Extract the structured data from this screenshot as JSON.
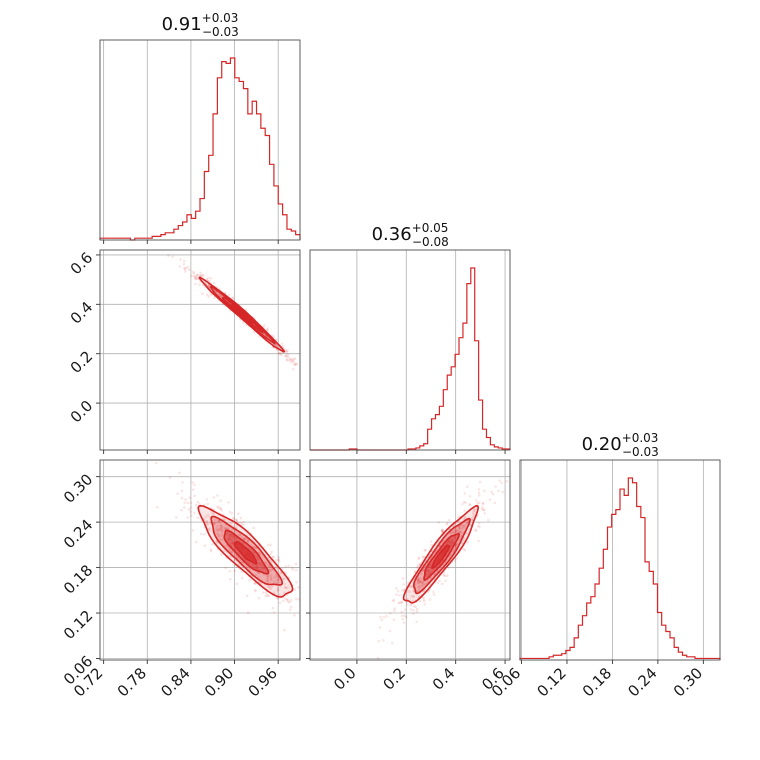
{
  "chart_data": {
    "type": "corner",
    "color": "#d62728",
    "grid": true,
    "parameters": [
      {
        "title": {
          "median": "0.91",
          "plus": "+0.03",
          "minus": "−0.03"
        },
        "range": [
          0.715,
          0.99
        ],
        "ticks": [
          0.72,
          0.78,
          0.84,
          0.9,
          0.96
        ],
        "tick_labels": [
          "0.72",
          "0.78",
          "0.84",
          "0.90",
          "0.96"
        ],
        "hist_bins": [
          0.715,
          0.99
        ],
        "hist_counts": [
          1,
          1,
          1,
          1,
          1,
          1,
          1,
          0,
          1,
          1,
          1,
          1,
          2,
          2,
          3,
          4,
          4,
          6,
          8,
          10,
          14,
          12,
          16,
          23,
          38,
          47,
          70,
          90,
          99,
          98,
          101,
          90,
          88,
          84,
          70,
          77,
          70,
          62,
          58,
          42,
          30,
          20,
          14,
          6,
          5,
          3
        ]
      },
      {
        "title": {
          "median": "0.36",
          "plus": "+0.05",
          "minus": "−0.08"
        },
        "range": [
          -0.19,
          0.62
        ],
        "ticks": [
          0.0,
          0.2,
          0.4,
          0.6
        ],
        "tick_labels": [
          "0.0",
          "0.2",
          "0.4",
          "0.6"
        ],
        "hist_bins": [
          -0.19,
          0.62
        ],
        "hist_counts": [
          0,
          0,
          0,
          0,
          0,
          0,
          0,
          0,
          0,
          0,
          1,
          1,
          0,
          0,
          0,
          0,
          0,
          0,
          0,
          0,
          0,
          0,
          0,
          0,
          0,
          1,
          1,
          2,
          4,
          6,
          20,
          30,
          34,
          42,
          58,
          72,
          80,
          92,
          108,
          122,
          160,
          175,
          105,
          48,
          20,
          12,
          5,
          3,
          2,
          1,
          1
        ]
      },
      {
        "title": {
          "median": "0.20",
          "plus": "+0.03",
          "minus": "−0.03"
        },
        "range": [
          0.058,
          0.322
        ],
        "ticks": [
          0.06,
          0.12,
          0.18,
          0.24,
          0.3
        ],
        "tick_labels": [
          "0.06",
          "0.12",
          "0.18",
          "0.24",
          "0.30"
        ],
        "hist_bins": [
          0.058,
          0.322
        ],
        "hist_counts": [
          1,
          1,
          1,
          1,
          1,
          1,
          1,
          2,
          3,
          3,
          4,
          6,
          8,
          14,
          22,
          28,
          36,
          40,
          48,
          58,
          70,
          84,
          92,
          95,
          108,
          104,
          115,
          112,
          97,
          90,
          62,
          56,
          48,
          30,
          22,
          18,
          14,
          8,
          5,
          3,
          2,
          2,
          1,
          1,
          1,
          1,
          1,
          1
        ]
      }
    ],
    "pairs": [
      {
        "row": 1,
        "col": 0,
        "x": "param0",
        "y": "param1",
        "center": [
          0.91,
          0.36
        ],
        "sd": [
          0.027,
          0.07
        ],
        "corr": -0.99,
        "banana": -0.15
      },
      {
        "row": 2,
        "col": 0,
        "x": "param0",
        "y": "param2",
        "center": [
          0.915,
          0.2
        ],
        "sd": [
          0.03,
          0.028
        ],
        "corr": -0.88,
        "banana": 0.0
      },
      {
        "row": 2,
        "col": 1,
        "x": "param1",
        "y": "param2",
        "center": [
          0.34,
          0.195
        ],
        "sd": [
          0.07,
          0.03
        ],
        "corr": 0.92,
        "banana": 0.0
      }
    ]
  }
}
